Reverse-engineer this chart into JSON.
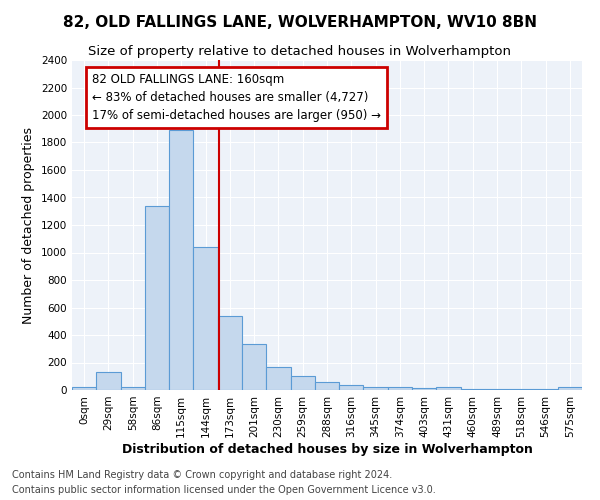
{
  "title1": "82, OLD FALLINGS LANE, WOLVERHAMPTON, WV10 8BN",
  "title2": "Size of property relative to detached houses in Wolverhampton",
  "xlabel": "Distribution of detached houses by size in Wolverhampton",
  "ylabel": "Number of detached properties",
  "footnote1": "Contains HM Land Registry data © Crown copyright and database right 2024.",
  "footnote2": "Contains public sector information licensed under the Open Government Licence v3.0.",
  "categories": [
    "0sqm",
    "29sqm",
    "58sqm",
    "86sqm",
    "115sqm",
    "144sqm",
    "173sqm",
    "201sqm",
    "230sqm",
    "259sqm",
    "288sqm",
    "316sqm",
    "345sqm",
    "374sqm",
    "403sqm",
    "431sqm",
    "460sqm",
    "489sqm",
    "518sqm",
    "546sqm",
    "575sqm"
  ],
  "values": [
    20,
    130,
    20,
    1340,
    1890,
    1040,
    540,
    335,
    165,
    105,
    55,
    35,
    25,
    20,
    15,
    20,
    5,
    5,
    5,
    5,
    20
  ],
  "bar_color": "#c5d8ed",
  "bar_edge_color": "#5b9bd5",
  "annotation_line1": "82 OLD FALLINGS LANE: 160sqm",
  "annotation_line2": "← 83% of detached houses are smaller (4,727)",
  "annotation_line3": "17% of semi-detached houses are larger (950) →",
  "annotation_box_color": "#ffffff",
  "annotation_box_edge": "#cc0000",
  "ylim": [
    0,
    2400
  ],
  "yticks": [
    0,
    200,
    400,
    600,
    800,
    1000,
    1200,
    1400,
    1600,
    1800,
    2000,
    2200,
    2400
  ],
  "plot_bg_color": "#edf2f9",
  "fig_bg_color": "#ffffff",
  "grid_color": "#ffffff",
  "title1_fontsize": 11,
  "title2_fontsize": 9.5,
  "xlabel_fontsize": 9,
  "ylabel_fontsize": 9,
  "tick_fontsize": 7.5,
  "footnote_fontsize": 7,
  "annotation_fontsize": 8.5
}
